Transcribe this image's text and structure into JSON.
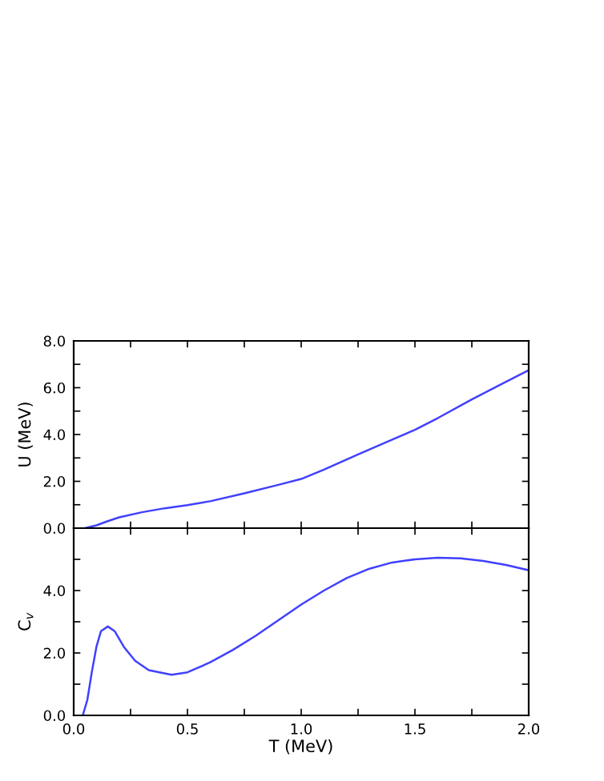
{
  "chart_data": [
    {
      "type": "line",
      "ylabel": "U (MeV)",
      "tick_labels": "y",
      "grid": false,
      "legend": false,
      "xlim": [
        0,
        2
      ],
      "xticks": [
        {
          "value": 0,
          "label": null
        },
        {
          "value": 0.25,
          "label": null
        },
        {
          "value": 0.5,
          "label": null
        },
        {
          "value": 0.75,
          "label": null
        },
        {
          "value": 1,
          "label": null
        },
        {
          "value": 1.25,
          "label": null
        },
        {
          "value": 1.5,
          "label": null
        },
        {
          "value": 1.75,
          "label": null
        },
        {
          "value": 2,
          "label": null
        }
      ],
      "ylim": [
        0,
        8
      ],
      "yticks": [
        {
          "value": 0,
          "label": "0.0"
        },
        {
          "value": 1,
          "label": null
        },
        {
          "value": 2,
          "label": "2.0"
        },
        {
          "value": 3,
          "label": null
        },
        {
          "value": 4,
          "label": "4.0"
        },
        {
          "value": 5,
          "label": null
        },
        {
          "value": 6,
          "label": "6.0"
        },
        {
          "value": 7,
          "label": null
        },
        {
          "value": 8,
          "label": "8.0"
        }
      ],
      "series": [
        {
          "color": "#4040ff",
          "x": [
            0.05,
            0.1,
            0.15,
            0.2,
            0.3,
            0.4,
            0.5,
            0.6,
            0.75,
            0.9,
            1.0,
            1.1,
            1.25,
            1.4,
            1.5,
            1.6,
            1.75,
            1.9,
            2.0
          ],
          "values": [
            0.0,
            0.12,
            0.3,
            0.46,
            0.68,
            0.85,
            0.98,
            1.15,
            1.49,
            1.85,
            2.1,
            2.5,
            3.15,
            3.78,
            4.2,
            4.7,
            5.5,
            6.25,
            6.75
          ]
        }
      ]
    },
    {
      "type": "line",
      "xlabel": "T (MeV)",
      "ylabel": "C$_{v}$",
      "grid": false,
      "legend": false,
      "xlim": [
        0,
        2
      ],
      "xticks": [
        {
          "value": 0,
          "label": "0.0"
        },
        {
          "value": 0.25,
          "label": null
        },
        0.5,
        {
          "value": 0.75,
          "label": null
        },
        {
          "value": 1,
          "label": "1.0"
        },
        {
          "value": 1.25,
          "label": null
        },
        1.5,
        {
          "value": 1.75,
          "label": null
        },
        {
          "value": 2,
          "label": "2.0"
        }
      ],
      "ylim": [
        0,
        6
      ],
      "yticks": [
        {
          "value": 0,
          "label": "0.0"
        },
        {
          "value": 1,
          "label": null
        },
        {
          "value": 2,
          "label": "2.0"
        },
        {
          "value": 3,
          "label": null
        },
        {
          "value": 4,
          "label": "4.0"
        },
        {
          "value": 5,
          "label": null
        },
        {
          "value": 6,
          "label": null
        }
      ],
      "series": [
        {
          "color": "#4040ff",
          "x": [
            0.04,
            0.06,
            0.08,
            0.1,
            0.12,
            0.15,
            0.18,
            0.22,
            0.27,
            0.33,
            0.43,
            0.5,
            0.6,
            0.7,
            0.8,
            0.9,
            1.0,
            1.1,
            1.2,
            1.3,
            1.4,
            1.5,
            1.6,
            1.7,
            1.8,
            1.9,
            2.0
          ],
          "values": [
            0.0,
            0.5,
            1.4,
            2.2,
            2.7,
            2.85,
            2.7,
            2.2,
            1.75,
            1.45,
            1.3,
            1.38,
            1.7,
            2.1,
            2.55,
            3.05,
            3.55,
            4.0,
            4.4,
            4.7,
            4.9,
            5.0,
            5.05,
            5.03,
            4.95,
            4.82,
            4.65
          ]
        }
      ]
    }
  ]
}
